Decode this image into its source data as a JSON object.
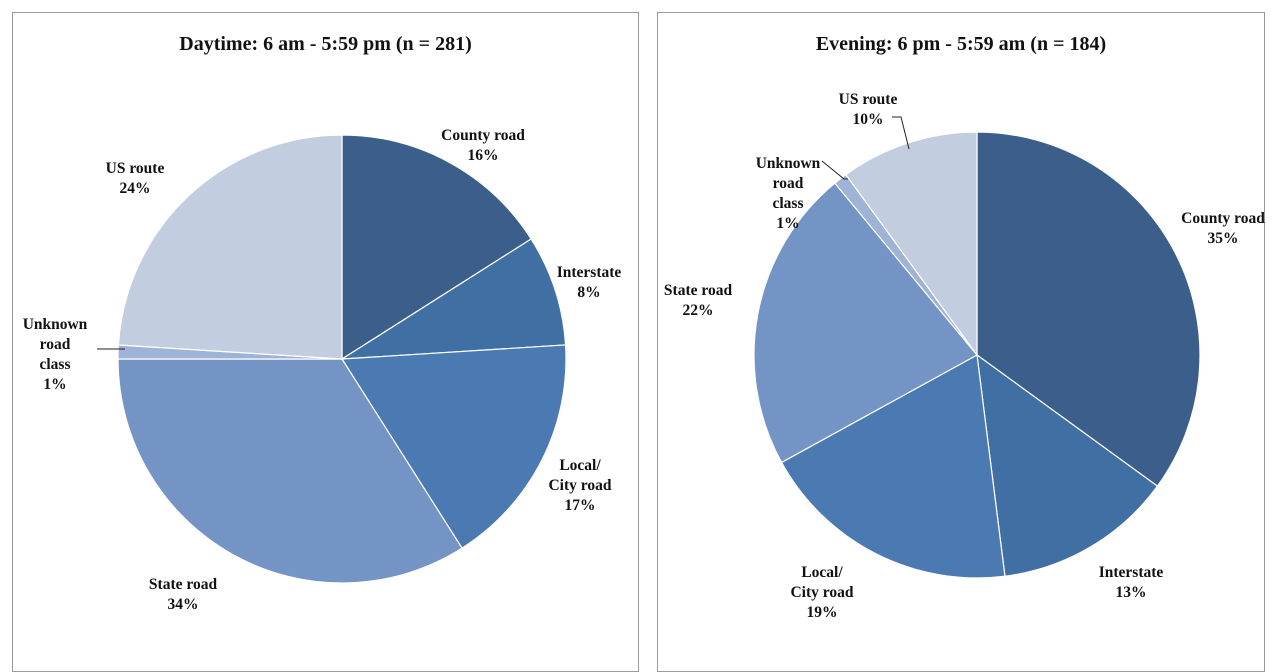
{
  "chart_data": [
    {
      "type": "pie",
      "title": "Daytime: 6 am - 5:59 pm (n = 281)",
      "slices": [
        {
          "label": "County road",
          "value": 16,
          "value_label": "16%",
          "color": "#3b5e8a"
        },
        {
          "label": "Interstate",
          "value": 8,
          "value_label": "8%",
          "color": "#406fa3"
        },
        {
          "label": "Local/\nCity road",
          "value": 17,
          "value_label": "17%",
          "color": "#4b7ab3"
        },
        {
          "label": "State road",
          "value": 34,
          "value_label": "34%",
          "color": "#7394c5"
        },
        {
          "label": "Unknown\nroad\nclass",
          "value": 1,
          "value_label": "1%",
          "color": "#9eb3d5"
        },
        {
          "label": "US route",
          "value": 24,
          "value_label": "24%",
          "color": "#c3cde0"
        }
      ]
    },
    {
      "type": "pie",
      "title": "Evening: 6 pm - 5:59 am (n = 184)",
      "slices": [
        {
          "label": "County road",
          "value": 35,
          "value_label": "35%",
          "color": "#3b5e8a"
        },
        {
          "label": "Interstate",
          "value": 13,
          "value_label": "13%",
          "color": "#406fa3"
        },
        {
          "label": "Local/\nCity road",
          "value": 19,
          "value_label": "19%",
          "color": "#4b7ab3"
        },
        {
          "label": "State road",
          "value": 22,
          "value_label": "22%",
          "color": "#7394c5"
        },
        {
          "label": "Unknown\nroad\nclass",
          "value": 1,
          "value_label": "1%",
          "color": "#9eb3d5"
        },
        {
          "label": "US route",
          "value": 10,
          "value_label": "10%",
          "color": "#c3cde0"
        }
      ]
    }
  ]
}
